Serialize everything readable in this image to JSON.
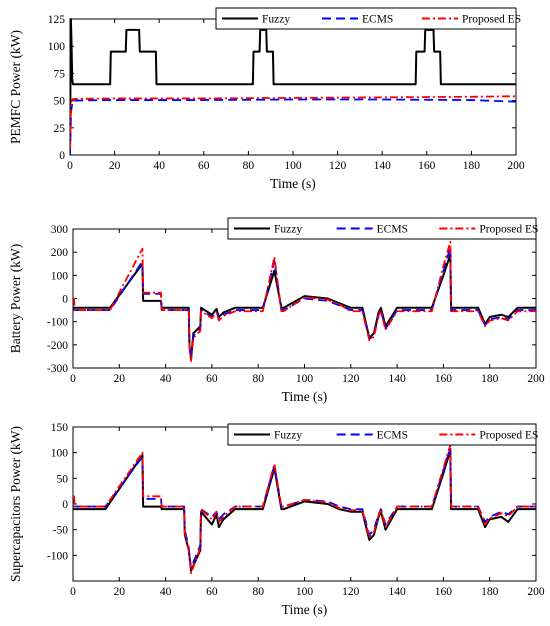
{
  "chart_data": [
    {
      "type": "line",
      "xlabel": "Time (s)",
      "ylabel": "PEMFC Power (kW)",
      "xlim": [
        0,
        200
      ],
      "ylim": [
        0,
        125
      ],
      "xticks": [
        0,
        20,
        40,
        60,
        80,
        100,
        120,
        140,
        160,
        180,
        200
      ],
      "yticks": [
        0,
        25,
        50,
        75,
        100,
        125
      ],
      "ytick_labels": [
        "0",
        "25",
        "50",
        "75",
        "100",
        "125"
      ],
      "grid": false,
      "legend_position": "top-right",
      "series": [
        {
          "name": "Fuzzy",
          "color": "#000000",
          "style": "solid",
          "x": [
            0,
            0.4,
            0.6,
            1,
            1.3,
            18,
            18.3,
            25,
            25.3,
            31,
            31.3,
            38.5,
            38.8,
            82,
            82.3,
            85,
            85.3,
            88,
            88.3,
            91,
            91.3,
            155,
            155.3,
            159,
            159.3,
            163,
            163.3,
            166,
            166.3,
            200
          ],
          "y": [
            0,
            125,
            110,
            70,
            65,
            65,
            95,
            95,
            115,
            115,
            95,
            95,
            65,
            65,
            95,
            95,
            115,
            115,
            95,
            95,
            65,
            65,
            95,
            95,
            115,
            115,
            95,
            95,
            65,
            65
          ]
        },
        {
          "name": "ECMS",
          "color": "#0000ff",
          "style": "dashed",
          "x": [
            0,
            0.5,
            1.2,
            20,
            60,
            100,
            140,
            180,
            200
          ],
          "y": [
            0,
            40,
            50,
            50.5,
            50.5,
            51,
            51,
            50.5,
            49
          ]
        },
        {
          "name": "Proposed ES",
          "color": "#ff0000",
          "style": "dashdot",
          "x": [
            0,
            0.5,
            1.2,
            20,
            60,
            100,
            140,
            180,
            200
          ],
          "y": [
            5,
            45,
            51.5,
            52,
            52,
            52.5,
            53,
            53.5,
            54
          ]
        }
      ]
    },
    {
      "type": "line",
      "xlabel": "Time (s)",
      "ylabel": "Battery Power (kW)",
      "xlim": [
        0,
        200
      ],
      "ylim": [
        -300,
        300
      ],
      "xticks": [
        0,
        20,
        40,
        60,
        80,
        100,
        120,
        140,
        160,
        180,
        200
      ],
      "yticks": [
        -300,
        -200,
        -100,
        0,
        100,
        200,
        300
      ],
      "ytick_labels": [
        "-300",
        "-200",
        "-100",
        "0",
        "100",
        "200",
        "300"
      ],
      "grid": false,
      "legend_position": "top-right",
      "series": [
        {
          "name": "Fuzzy",
          "color": "#000000",
          "style": "solid",
          "x": [
            0,
            16,
            30,
            30.3,
            38,
            38.3,
            50,
            50.3,
            51,
            52,
            55,
            55.3,
            60,
            62,
            63,
            65,
            70,
            82,
            87,
            90,
            91,
            100,
            110,
            115,
            120,
            125,
            128,
            130,
            132,
            133,
            135,
            140,
            155,
            160,
            163,
            163.3,
            165,
            165.3,
            175,
            178,
            180,
            185,
            188,
            192,
            200
          ],
          "y": [
            -40,
            -40,
            150,
            -10,
            -10,
            -40,
            -40,
            -200,
            -260,
            -150,
            -120,
            -40,
            -70,
            -45,
            -80,
            -60,
            -40,
            -40,
            120,
            -40,
            -40,
            10,
            0,
            -20,
            -40,
            -40,
            -170,
            -150,
            -60,
            -40,
            -120,
            -40,
            -40,
            100,
            190,
            -40,
            -40,
            -40,
            -40,
            -110,
            -80,
            -70,
            -80,
            -40,
            -40
          ]
        },
        {
          "name": "ECMS",
          "color": "#0000ff",
          "style": "dashed",
          "x": [
            0,
            16,
            30,
            30.3,
            38,
            38.3,
            50,
            50.3,
            51,
            52,
            55,
            55.3,
            60,
            62,
            63,
            65,
            70,
            82,
            87,
            90,
            91,
            100,
            110,
            115,
            120,
            125,
            128,
            130,
            132,
            133,
            135,
            140,
            155,
            160,
            163,
            163.3,
            165,
            165.3,
            175,
            178,
            180,
            185,
            188,
            192,
            200
          ],
          "y": [
            -50,
            -50,
            160,
            20,
            20,
            -50,
            -50,
            -210,
            -255,
            -160,
            -130,
            -50,
            -80,
            -55,
            -90,
            -70,
            -50,
            -50,
            165,
            -50,
            -50,
            0,
            -10,
            -30,
            -50,
            -50,
            -175,
            -160,
            -70,
            -50,
            -130,
            -50,
            -50,
            120,
            220,
            -50,
            -50,
            -50,
            -50,
            -115,
            -90,
            -80,
            -90,
            -50,
            -50
          ]
        },
        {
          "name": "Proposed ES",
          "color": "#ff0000",
          "style": "dashdot",
          "x": [
            0,
            0.4,
            0.8,
            16,
            30,
            30.3,
            38,
            38.3,
            50,
            50.3,
            51,
            52,
            55,
            55.3,
            60,
            62,
            63,
            65,
            70,
            82,
            87,
            90,
            91,
            100,
            110,
            115,
            120,
            125,
            128,
            130,
            132,
            133,
            135,
            140,
            155,
            160,
            163,
            163.3,
            165,
            165.3,
            175,
            178,
            180,
            185,
            188,
            192,
            200
          ],
          "y": [
            0,
            0,
            -50,
            -50,
            215,
            25,
            25,
            -50,
            -50,
            -210,
            -270,
            -170,
            -140,
            -55,
            -85,
            -60,
            -95,
            -75,
            -55,
            -55,
            180,
            -55,
            -55,
            5,
            -5,
            -25,
            -55,
            -55,
            -180,
            -165,
            -75,
            -55,
            -135,
            -55,
            -55,
            140,
            245,
            -55,
            -55,
            -55,
            -55,
            -120,
            -95,
            -85,
            -95,
            -55,
            -55
          ]
        }
      ]
    },
    {
      "type": "line",
      "xlabel": "Time (s)",
      "ylabel": "Supercapacitors Power (kW)",
      "xlim": [
        0,
        200
      ],
      "ylim": [
        -150,
        150
      ],
      "xticks": [
        0,
        20,
        40,
        60,
        80,
        100,
        120,
        140,
        160,
        180,
        200
      ],
      "yticks": [
        -100,
        -50,
        0,
        50,
        100,
        150
      ],
      "ytick_labels": [
        "-100",
        "-50",
        "0",
        "50",
        "100",
        "150"
      ],
      "grid": false,
      "legend_position": "top-right",
      "series": [
        {
          "name": "Fuzzy",
          "color": "#000000",
          "style": "solid",
          "x": [
            0,
            14,
            30,
            30.3,
            38,
            38.3,
            48,
            48.3,
            50,
            51,
            55,
            55.3,
            60,
            62,
            63,
            65,
            70,
            82,
            87,
            90,
            91,
            100,
            110,
            115,
            120,
            125,
            128,
            130,
            132,
            133,
            135,
            140,
            155,
            160,
            163,
            163.3,
            165,
            165.3,
            175,
            178,
            180,
            185,
            188,
            192,
            200
          ],
          "y": [
            -10,
            -10,
            95,
            -5,
            -5,
            -10,
            -10,
            -60,
            -90,
            -130,
            -90,
            -15,
            -40,
            -20,
            -45,
            -30,
            -10,
            -10,
            70,
            -10,
            -10,
            5,
            0,
            -10,
            -15,
            -15,
            -70,
            -60,
            -25,
            -15,
            -50,
            -10,
            -10,
            60,
            105,
            -10,
            -10,
            -10,
            -10,
            -45,
            -30,
            -25,
            -35,
            -10,
            -10
          ]
        },
        {
          "name": "ECMS",
          "color": "#0000ff",
          "style": "dashed",
          "x": [
            0,
            14,
            30,
            30.3,
            38,
            38.3,
            48,
            48.3,
            50,
            51,
            55,
            55.3,
            60,
            62,
            63,
            65,
            70,
            82,
            87,
            90,
            91,
            100,
            110,
            115,
            120,
            125,
            128,
            130,
            132,
            133,
            135,
            140,
            155,
            160,
            163,
            163.3,
            165,
            165.3,
            175,
            178,
            180,
            185,
            188,
            192,
            200
          ],
          "y": [
            -5,
            -5,
            92,
            10,
            10,
            -5,
            -5,
            -50,
            -85,
            -125,
            -80,
            -10,
            -25,
            -15,
            -30,
            -20,
            -5,
            -5,
            75,
            -5,
            -5,
            8,
            5,
            -5,
            -10,
            -10,
            -60,
            -50,
            -20,
            -10,
            -40,
            -5,
            -5,
            65,
            110,
            -5,
            -5,
            -5,
            -5,
            -35,
            -25,
            -15,
            -20,
            -5,
            -5
          ]
        },
        {
          "name": "Proposed ES",
          "color": "#ff0000",
          "style": "dashdot",
          "x": [
            0,
            0.4,
            0.8,
            14,
            30,
            30.3,
            38,
            38.3,
            48,
            48.3,
            50,
            51,
            55,
            55.3,
            60,
            62,
            63,
            65,
            70,
            82,
            87,
            90,
            91,
            100,
            110,
            115,
            120,
            125,
            128,
            130,
            132,
            133,
            135,
            140,
            155,
            160,
            163,
            163.3,
            165,
            165.3,
            175,
            178,
            180,
            185,
            188,
            192,
            200
          ],
          "y": [
            15,
            15,
            -5,
            -5,
            100,
            15,
            15,
            -5,
            -5,
            -55,
            -90,
            -135,
            -85,
            -10,
            -30,
            -15,
            -35,
            -25,
            -5,
            -5,
            78,
            -5,
            -5,
            8,
            3,
            -8,
            -12,
            -12,
            -65,
            -55,
            -22,
            -10,
            -45,
            -5,
            -5,
            70,
            115,
            -5,
            -5,
            -5,
            -5,
            -40,
            -28,
            -18,
            -24,
            -5,
            -5
          ]
        }
      ]
    }
  ]
}
